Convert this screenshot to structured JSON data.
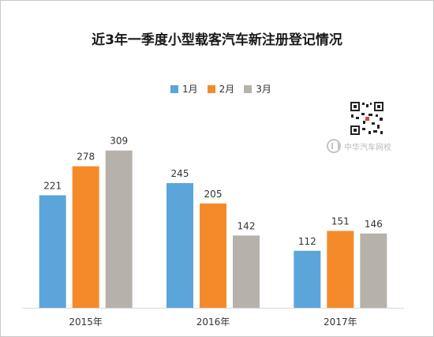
{
  "chart_data": {
    "type": "bar",
    "title": "近3年一季度小型载客汽车新注册登记情况",
    "categories": [
      "2015年",
      "2016年",
      "2017年"
    ],
    "series": [
      {
        "name": "1月",
        "values": [
          221,
          245,
          112
        ],
        "color": "#5ba5db"
      },
      {
        "name": "2月",
        "values": [
          278,
          205,
          151
        ],
        "color": "#f58a2b"
      },
      {
        "name": "3月",
        "values": [
          309,
          142,
          146
        ],
        "color": "#b6b2ab"
      }
    ],
    "ylim": [
      0,
      400
    ],
    "grid": false,
    "legend_position": "top",
    "data_labels": true
  },
  "watermark": {
    "text": "中华汽车网校",
    "qr_icon": "qr-code-icon",
    "logo_icon": "site-logo-icon"
  }
}
